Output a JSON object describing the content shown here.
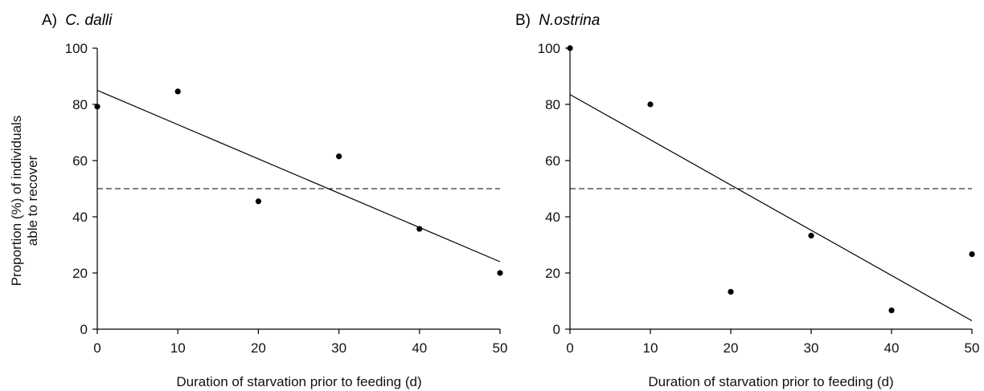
{
  "figure": {
    "ylabel_line1": "Proportion (%) of individuals",
    "ylabel_line2": "able to recover"
  },
  "chart_data": [
    {
      "type": "scatter",
      "panel_label": "A)",
      "title": "C. dalli",
      "xlabel": "Duration of starvation prior to feeding (d)",
      "ylabel": "Proportion (%) of individuals able to recover",
      "xlim": [
        0,
        50
      ],
      "ylim": [
        0,
        100
      ],
      "xticks": [
        "0",
        "10",
        "20",
        "30",
        "40",
        "50"
      ],
      "yticks": [
        "0",
        "20",
        "40",
        "60",
        "80",
        "100"
      ],
      "points": [
        {
          "x": 0,
          "y": 79.2
        },
        {
          "x": 10,
          "y": 84.6
        },
        {
          "x": 20,
          "y": 45.5
        },
        {
          "x": 30,
          "y": 61.5
        },
        {
          "x": 40,
          "y": 35.7
        },
        {
          "x": 50,
          "y": 20.0
        }
      ],
      "regression": {
        "y_at_xmin": 85.0,
        "y_at_xmax": 24.0
      },
      "reference_line_y": 50,
      "reference_style": "dashed",
      "grid": false
    },
    {
      "type": "scatter",
      "panel_label": "B)",
      "title": "N.ostrina",
      "xlabel": "Duration of starvation prior to feeding (d)",
      "ylabel": "",
      "xlim": [
        0,
        50
      ],
      "ylim": [
        0,
        100
      ],
      "xticks": [
        "0",
        "10",
        "20",
        "30",
        "40",
        "50"
      ],
      "yticks": [
        "0",
        "20",
        "40",
        "60",
        "80",
        "100"
      ],
      "points": [
        {
          "x": 0,
          "y": 100.0
        },
        {
          "x": 10,
          "y": 80.0
        },
        {
          "x": 20,
          "y": 13.3
        },
        {
          "x": 30,
          "y": 33.3
        },
        {
          "x": 40,
          "y": 6.7
        },
        {
          "x": 50,
          "y": 26.7
        }
      ],
      "regression": {
        "y_at_xmin": 83.5,
        "y_at_xmax": 3.0
      },
      "reference_line_y": 50,
      "reference_style": "dashed",
      "grid": false
    }
  ]
}
